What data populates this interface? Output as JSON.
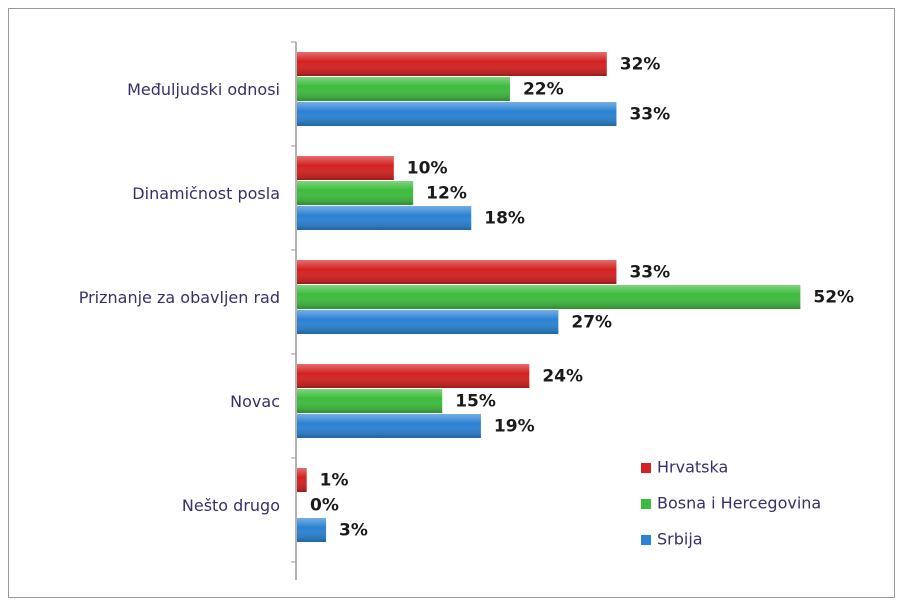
{
  "chart_data": {
    "type": "bar",
    "orientation": "horizontal",
    "categories": [
      "Međuljudski odnosi",
      "Dinamičnost posla",
      "Priznanje za obavljen rad",
      "Novac",
      "Nešto drugo"
    ],
    "series": [
      {
        "name": "Hrvatska",
        "color": "#d42020",
        "values": [
          32,
          10,
          33,
          24,
          1
        ],
        "value_labels": [
          "32%",
          "10%",
          "33%",
          "24%",
          "1%"
        ]
      },
      {
        "name": "Bosna i Hercegovina",
        "color": "#3cbc3c",
        "values": [
          22,
          12,
          52,
          15,
          0
        ],
        "value_labels": [
          "22%",
          "12%",
          "52%",
          "15%",
          "0%"
        ]
      },
      {
        "name": "Srbija",
        "color": "#2a82d4",
        "values": [
          33,
          18,
          27,
          19,
          3
        ],
        "value_labels": [
          "33%",
          "18%",
          "27%",
          "19%",
          "3%"
        ]
      }
    ],
    "legend": "lower right"
  }
}
